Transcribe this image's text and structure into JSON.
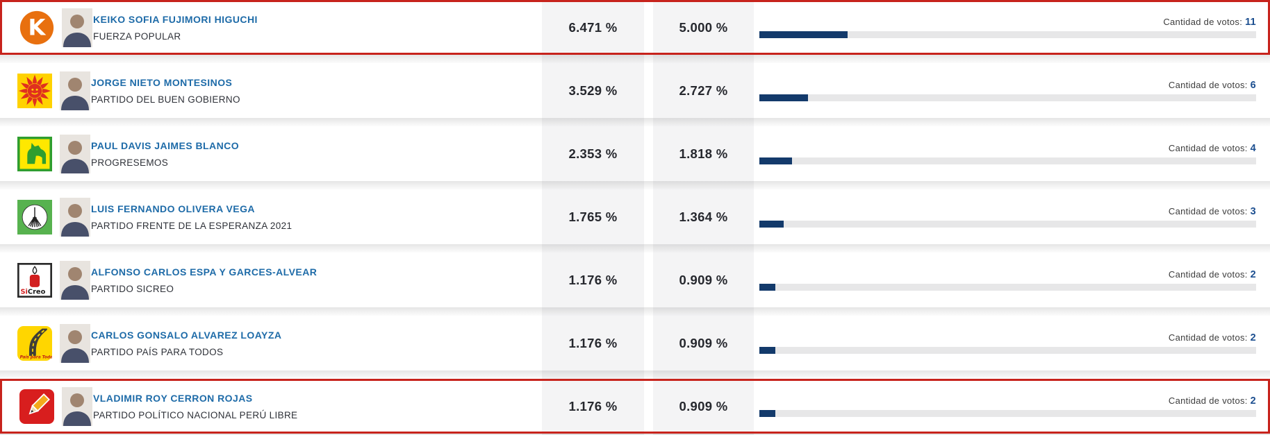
{
  "votes_label": "Cantidad de votos:",
  "colors": {
    "highlight_border": "#c7231c",
    "bar_fill": "#133a6b",
    "bar_track": "#e7e7e8",
    "candidate_name_link": "#1e6ba8",
    "votes_number": "#1b4e8f",
    "percentage_column_bg": "#f4f4f5"
  },
  "candidates": [
    {
      "name": "KEIKO SOFIA FUJIMORI HIGUCHI",
      "party": "FUERZA POPULAR",
      "logo": "fuerza-popular",
      "pct1": "6.471 %",
      "pct2": "5.000 %",
      "votes": "11",
      "bar_percent": 17.8,
      "highlighted": true
    },
    {
      "name": "JORGE NIETO MONTESINOS",
      "party": "PARTIDO DEL BUEN GOBIERNO",
      "logo": "buen-gobierno",
      "pct1": "3.529 %",
      "pct2": "2.727 %",
      "votes": "6",
      "bar_percent": 9.8,
      "highlighted": false
    },
    {
      "name": "PAUL DAVIS JAIMES BLANCO",
      "party": "PROGRESEMOS",
      "logo": "progresemos",
      "pct1": "2.353 %",
      "pct2": "1.818 %",
      "votes": "4",
      "bar_percent": 6.6,
      "highlighted": false
    },
    {
      "name": "LUIS FERNANDO OLIVERA VEGA",
      "party": "PARTIDO FRENTE DE LA ESPERANZA 2021",
      "logo": "esperanza-2021",
      "pct1": "1.765 %",
      "pct2": "1.364 %",
      "votes": "3",
      "bar_percent": 4.9,
      "highlighted": false
    },
    {
      "name": "ALFONSO CARLOS ESPA Y GARCES-ALVEAR",
      "party": "PARTIDO SICREO",
      "logo": "sicreo",
      "pct1": "1.176 %",
      "pct2": "0.909 %",
      "votes": "2",
      "bar_percent": 3.2,
      "highlighted": false
    },
    {
      "name": "CARLOS GONSALO ALVAREZ LOAYZA",
      "party": "PARTIDO PAÍS PARA TODOS",
      "logo": "pais-para-todos",
      "pct1": "1.176 %",
      "pct2": "0.909 %",
      "votes": "2",
      "bar_percent": 3.2,
      "highlighted": false
    },
    {
      "name": "VLADIMIR ROY CERRON ROJAS",
      "party": "PARTIDO POLÍTICO NACIONAL PERÚ LIBRE",
      "logo": "peru-libre",
      "pct1": "1.176 %",
      "pct2": "0.909 %",
      "votes": "2",
      "bar_percent": 3.2,
      "highlighted": true
    }
  ]
}
